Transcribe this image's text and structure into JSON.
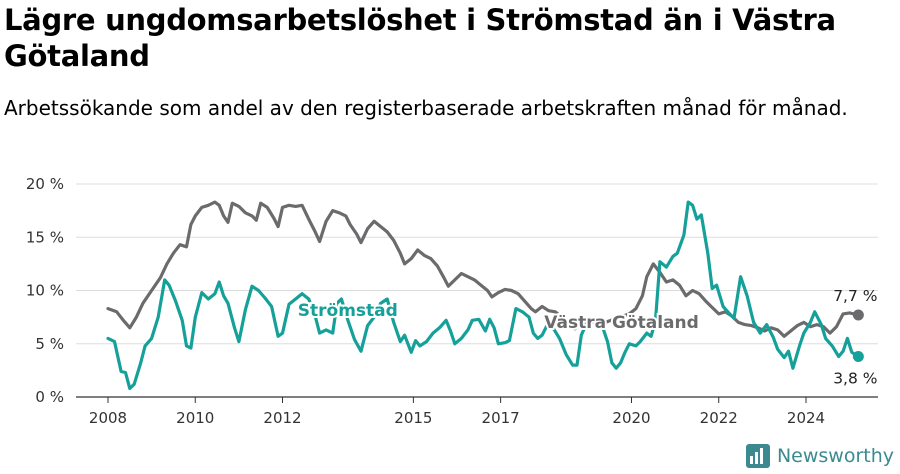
{
  "title": "Lägre ungdomsarbetslöshet i Strömstad än i Västra Götaland",
  "subtitle": "Arbetssökande som andel av den registerbaserade arbetskraften månad för månad.",
  "brand": "Newsworthy",
  "colors": {
    "stromstad": "#16a09a",
    "vastra_gotaland": "#6b6b6e",
    "grid": "#dddddd"
  },
  "chart_data": {
    "type": "line",
    "ylim": [
      0,
      20
    ],
    "xlim": [
      2008,
      2025.6
    ],
    "y_ticks": [
      "0 %",
      "5 %",
      "10 %",
      "15 %",
      "20 %"
    ],
    "x_ticks": [
      "2008",
      "2010",
      "2012",
      "2015",
      "2017",
      "2020",
      "2022",
      "2024"
    ],
    "grid": true,
    "series": [
      {
        "name": "Västra Götaland",
        "end_label": "7,7 %",
        "points": [
          [
            2008.0,
            8.3
          ],
          [
            2008.2,
            8.0
          ],
          [
            2008.35,
            7.2
          ],
          [
            2008.5,
            6.5
          ],
          [
            2008.65,
            7.5
          ],
          [
            2008.8,
            8.8
          ],
          [
            2009.0,
            10.0
          ],
          [
            2009.2,
            11.2
          ],
          [
            2009.35,
            12.5
          ],
          [
            2009.5,
            13.5
          ],
          [
            2009.65,
            14.3
          ],
          [
            2009.8,
            14.1
          ],
          [
            2009.9,
            16.2
          ],
          [
            2010.0,
            17.0
          ],
          [
            2010.15,
            17.8
          ],
          [
            2010.3,
            18.0
          ],
          [
            2010.45,
            18.3
          ],
          [
            2010.55,
            18.0
          ],
          [
            2010.65,
            17.0
          ],
          [
            2010.75,
            16.4
          ],
          [
            2010.85,
            18.2
          ],
          [
            2011.0,
            17.9
          ],
          [
            2011.15,
            17.3
          ],
          [
            2011.3,
            17.0
          ],
          [
            2011.4,
            16.6
          ],
          [
            2011.5,
            18.2
          ],
          [
            2011.65,
            17.8
          ],
          [
            2011.8,
            16.8
          ],
          [
            2011.9,
            16.0
          ],
          [
            2012.0,
            17.8
          ],
          [
            2012.15,
            18.0
          ],
          [
            2012.3,
            17.9
          ],
          [
            2012.45,
            18.0
          ],
          [
            2012.6,
            16.7
          ],
          [
            2012.75,
            15.5
          ],
          [
            2012.85,
            14.6
          ],
          [
            2013.0,
            16.5
          ],
          [
            2013.15,
            17.5
          ],
          [
            2013.3,
            17.3
          ],
          [
            2013.45,
            17.0
          ],
          [
            2013.55,
            16.2
          ],
          [
            2013.7,
            15.3
          ],
          [
            2013.8,
            14.5
          ],
          [
            2013.95,
            15.8
          ],
          [
            2014.1,
            16.5
          ],
          [
            2014.25,
            16.0
          ],
          [
            2014.4,
            15.5
          ],
          [
            2014.55,
            14.7
          ],
          [
            2014.7,
            13.5
          ],
          [
            2014.8,
            12.5
          ],
          [
            2014.95,
            13.0
          ],
          [
            2015.1,
            13.8
          ],
          [
            2015.25,
            13.3
          ],
          [
            2015.4,
            13.0
          ],
          [
            2015.55,
            12.3
          ],
          [
            2015.7,
            11.2
          ],
          [
            2015.8,
            10.4
          ],
          [
            2015.95,
            11.0
          ],
          [
            2016.1,
            11.6
          ],
          [
            2016.25,
            11.3
          ],
          [
            2016.4,
            11.0
          ],
          [
            2016.55,
            10.5
          ],
          [
            2016.7,
            10.0
          ],
          [
            2016.8,
            9.4
          ],
          [
            2016.95,
            9.8
          ],
          [
            2017.1,
            10.1
          ],
          [
            2017.25,
            10.0
          ],
          [
            2017.4,
            9.7
          ],
          [
            2017.55,
            9.0
          ],
          [
            2017.7,
            8.3
          ],
          [
            2017.8,
            8.0
          ],
          [
            2017.95,
            8.5
          ],
          [
            2018.1,
            8.1
          ],
          [
            2018.25,
            8.0
          ],
          [
            2018.4,
            7.5
          ],
          [
            2018.55,
            6.8
          ],
          [
            2018.7,
            6.4
          ],
          [
            2018.8,
            6.7
          ],
          [
            2019.0,
            7.0
          ],
          [
            2019.2,
            7.1
          ],
          [
            2019.4,
            7.0
          ],
          [
            2019.6,
            7.3
          ],
          [
            2019.8,
            7.6
          ],
          [
            2019.95,
            7.8
          ],
          [
            2020.1,
            8.3
          ],
          [
            2020.25,
            9.5
          ],
          [
            2020.35,
            11.3
          ],
          [
            2020.5,
            12.5
          ],
          [
            2020.65,
            11.7
          ],
          [
            2020.8,
            10.8
          ],
          [
            2020.95,
            11.0
          ],
          [
            2021.1,
            10.5
          ],
          [
            2021.25,
            9.5
          ],
          [
            2021.4,
            10.0
          ],
          [
            2021.55,
            9.7
          ],
          [
            2021.7,
            9.0
          ],
          [
            2021.85,
            8.4
          ],
          [
            2022.0,
            7.8
          ],
          [
            2022.15,
            8.0
          ],
          [
            2022.3,
            7.6
          ],
          [
            2022.45,
            7.0
          ],
          [
            2022.6,
            6.8
          ],
          [
            2022.75,
            6.7
          ],
          [
            2022.9,
            6.5
          ],
          [
            2023.05,
            6.2
          ],
          [
            2023.2,
            6.5
          ],
          [
            2023.35,
            6.3
          ],
          [
            2023.5,
            5.7
          ],
          [
            2023.65,
            6.2
          ],
          [
            2023.8,
            6.7
          ],
          [
            2023.95,
            7.0
          ],
          [
            2024.1,
            6.6
          ],
          [
            2024.25,
            6.8
          ],
          [
            2024.4,
            6.6
          ],
          [
            2024.55,
            6.0
          ],
          [
            2024.7,
            6.6
          ],
          [
            2024.85,
            7.8
          ],
          [
            2025.0,
            7.9
          ],
          [
            2025.2,
            7.7
          ]
        ]
      },
      {
        "name": "Strömstad",
        "end_label": "3,8 %",
        "points": [
          [
            2008.0,
            5.5
          ],
          [
            2008.15,
            5.2
          ],
          [
            2008.3,
            2.4
          ],
          [
            2008.4,
            2.3
          ],
          [
            2008.5,
            0.8
          ],
          [
            2008.6,
            1.2
          ],
          [
            2008.75,
            3.2
          ],
          [
            2008.85,
            4.8
          ],
          [
            2009.0,
            5.5
          ],
          [
            2009.15,
            7.5
          ],
          [
            2009.3,
            11.0
          ],
          [
            2009.4,
            10.5
          ],
          [
            2009.55,
            9.0
          ],
          [
            2009.7,
            7.2
          ],
          [
            2009.8,
            4.8
          ],
          [
            2009.9,
            4.6
          ],
          [
            2010.0,
            7.5
          ],
          [
            2010.15,
            9.8
          ],
          [
            2010.3,
            9.2
          ],
          [
            2010.45,
            9.7
          ],
          [
            2010.55,
            10.8
          ],
          [
            2010.65,
            9.5
          ],
          [
            2010.75,
            8.8
          ],
          [
            2010.9,
            6.5
          ],
          [
            2011.0,
            5.2
          ],
          [
            2011.15,
            8.2
          ],
          [
            2011.3,
            10.4
          ],
          [
            2011.45,
            10.0
          ],
          [
            2011.6,
            9.3
          ],
          [
            2011.75,
            8.5
          ],
          [
            2011.9,
            5.7
          ],
          [
            2012.0,
            6.0
          ],
          [
            2012.15,
            8.7
          ],
          [
            2012.3,
            9.2
          ],
          [
            2012.45,
            9.7
          ],
          [
            2012.6,
            9.2
          ],
          [
            2012.75,
            7.6
          ],
          [
            2012.85,
            6.0
          ],
          [
            2013.0,
            6.3
          ],
          [
            2013.15,
            6.0
          ],
          [
            2013.25,
            8.8
          ],
          [
            2013.35,
            9.2
          ],
          [
            2013.5,
            7.2
          ],
          [
            2013.65,
            5.4
          ],
          [
            2013.8,
            4.3
          ],
          [
            2013.95,
            6.7
          ],
          [
            2014.1,
            7.5
          ],
          [
            2014.25,
            8.8
          ],
          [
            2014.4,
            9.2
          ],
          [
            2014.55,
            7.0
          ],
          [
            2014.7,
            5.2
          ],
          [
            2014.8,
            5.8
          ],
          [
            2014.95,
            4.2
          ],
          [
            2015.05,
            5.3
          ],
          [
            2015.15,
            4.8
          ],
          [
            2015.3,
            5.2
          ],
          [
            2015.45,
            6.0
          ],
          [
            2015.6,
            6.5
          ],
          [
            2015.75,
            7.2
          ],
          [
            2015.85,
            6.2
          ],
          [
            2015.95,
            5.0
          ],
          [
            2016.1,
            5.5
          ],
          [
            2016.25,
            6.3
          ],
          [
            2016.35,
            7.2
          ],
          [
            2016.5,
            7.3
          ],
          [
            2016.65,
            6.2
          ],
          [
            2016.75,
            7.3
          ],
          [
            2016.85,
            6.5
          ],
          [
            2016.95,
            5.0
          ],
          [
            2017.1,
            5.1
          ],
          [
            2017.2,
            5.3
          ],
          [
            2017.35,
            8.3
          ],
          [
            2017.5,
            8.0
          ],
          [
            2017.65,
            7.5
          ],
          [
            2017.75,
            6.0
          ],
          [
            2017.85,
            5.5
          ],
          [
            2017.95,
            5.8
          ],
          [
            2018.1,
            7.0
          ],
          [
            2018.2,
            6.5
          ],
          [
            2018.35,
            5.5
          ],
          [
            2018.5,
            4.0
          ],
          [
            2018.65,
            3.0
          ],
          [
            2018.75,
            3.0
          ],
          [
            2018.85,
            5.8
          ],
          [
            2019.0,
            7.2
          ],
          [
            2019.15,
            7.4
          ],
          [
            2019.3,
            7.0
          ],
          [
            2019.45,
            5.2
          ],
          [
            2019.55,
            3.2
          ],
          [
            2019.65,
            2.7
          ],
          [
            2019.75,
            3.2
          ],
          [
            2019.85,
            4.2
          ],
          [
            2019.95,
            5.0
          ],
          [
            2020.1,
            4.8
          ],
          [
            2020.2,
            5.2
          ],
          [
            2020.35,
            6.0
          ],
          [
            2020.45,
            5.7
          ],
          [
            2020.55,
            7.2
          ],
          [
            2020.65,
            12.7
          ],
          [
            2020.8,
            12.2
          ],
          [
            2020.95,
            13.2
          ],
          [
            2021.05,
            13.5
          ],
          [
            2021.2,
            15.2
          ],
          [
            2021.3,
            18.3
          ],
          [
            2021.4,
            18.0
          ],
          [
            2021.5,
            16.7
          ],
          [
            2021.6,
            17.1
          ],
          [
            2021.75,
            13.5
          ],
          [
            2021.85,
            10.2
          ],
          [
            2021.95,
            10.5
          ],
          [
            2022.1,
            8.5
          ],
          [
            2022.25,
            7.8
          ],
          [
            2022.35,
            7.4
          ],
          [
            2022.5,
            11.3
          ],
          [
            2022.65,
            9.5
          ],
          [
            2022.8,
            7.0
          ],
          [
            2022.95,
            6.0
          ],
          [
            2023.1,
            6.8
          ],
          [
            2023.25,
            5.6
          ],
          [
            2023.35,
            4.5
          ],
          [
            2023.5,
            3.7
          ],
          [
            2023.6,
            4.3
          ],
          [
            2023.7,
            2.7
          ],
          [
            2023.85,
            4.8
          ],
          [
            2023.95,
            6.0
          ],
          [
            2024.1,
            7.0
          ],
          [
            2024.2,
            8.0
          ],
          [
            2024.35,
            6.8
          ],
          [
            2024.45,
            5.5
          ],
          [
            2024.6,
            4.8
          ],
          [
            2024.75,
            3.8
          ],
          [
            2024.85,
            4.3
          ],
          [
            2024.95,
            5.5
          ],
          [
            2025.05,
            4.2
          ],
          [
            2025.2,
            3.8
          ]
        ]
      }
    ]
  }
}
